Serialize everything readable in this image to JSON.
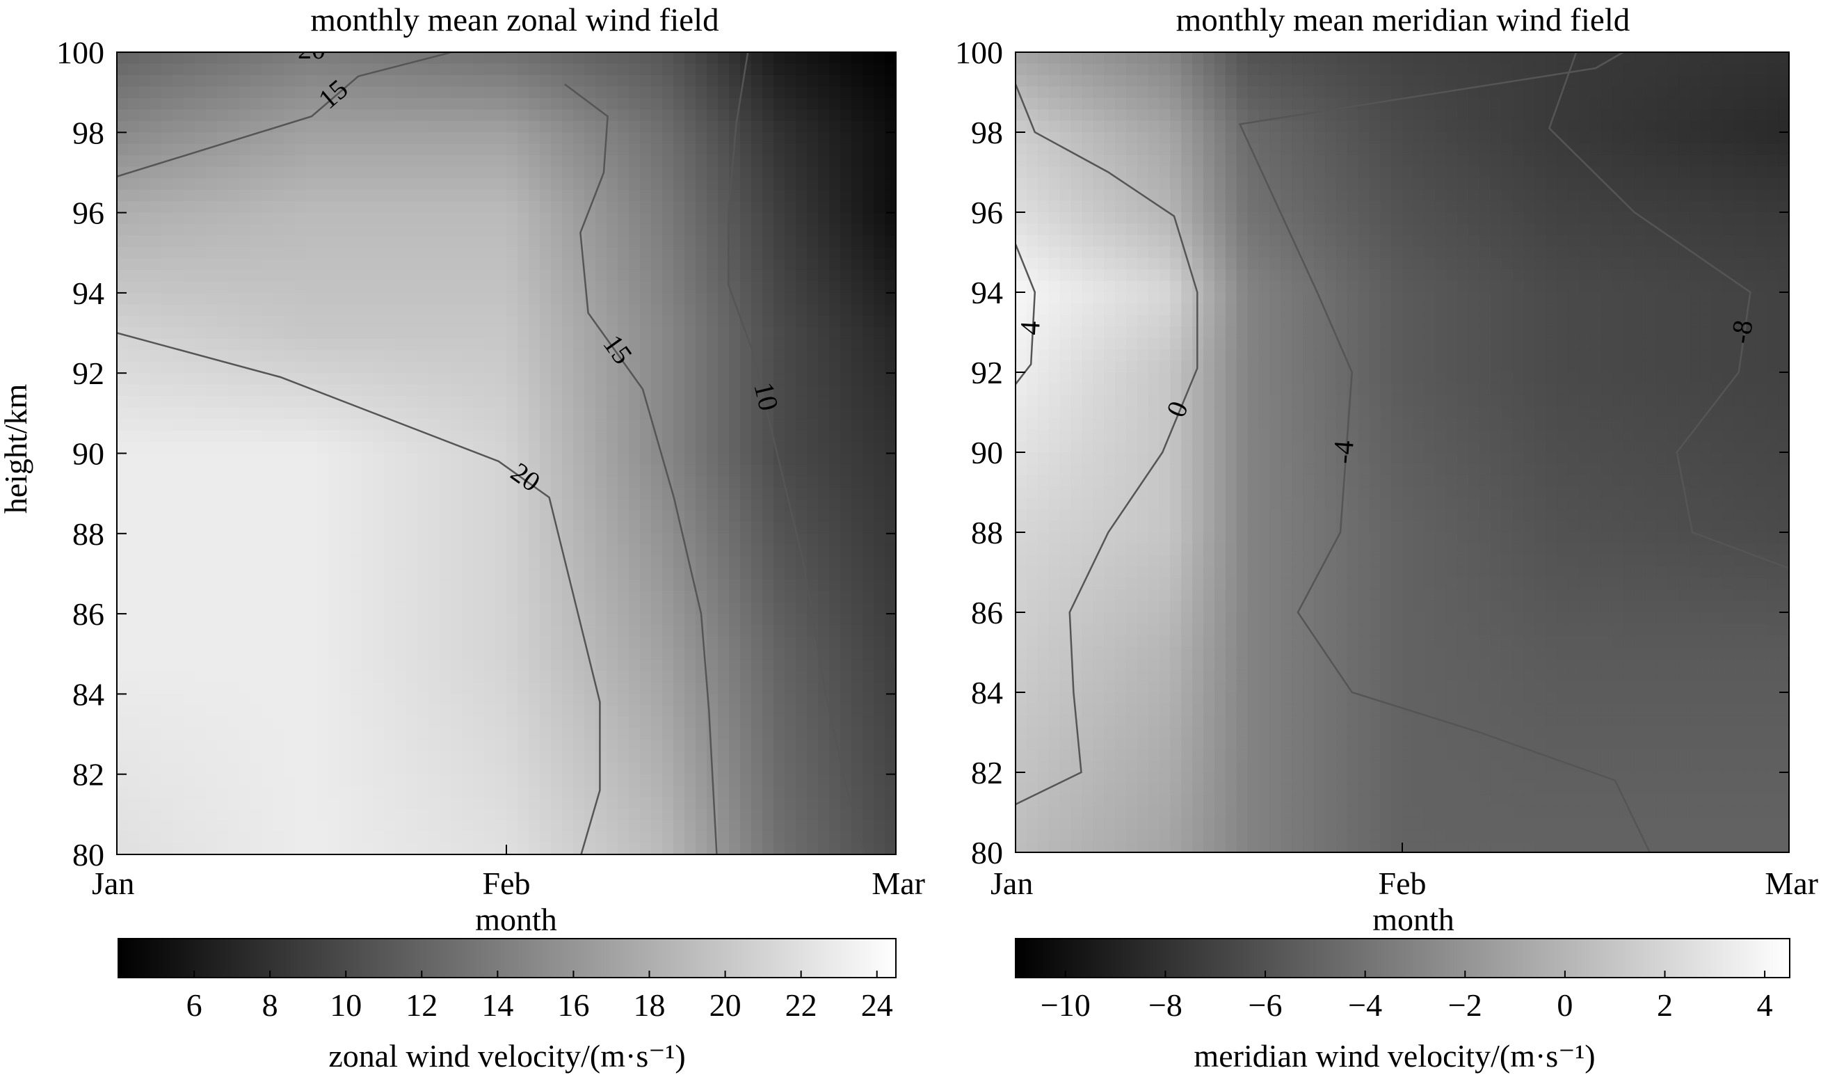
{
  "figure": {
    "ylabel": "height/km",
    "ytick_labels": [
      "80",
      "82",
      "84",
      "86",
      "88",
      "90",
      "92",
      "94",
      "96",
      "98",
      "100"
    ]
  },
  "chart_data": [
    {
      "type": "heatmap",
      "title": "monthly mean zonal wind field",
      "xlabel": "month",
      "ylabel": "height/km",
      "x_categories": [
        "Jan",
        "Feb",
        "Mar"
      ],
      "ylim": [
        80,
        100
      ],
      "colorscale": "gray",
      "colorbar": {
        "label": "zonal wind velocity/(m·s⁻¹)",
        "range": [
          4,
          24.5
        ],
        "ticks": [
          6,
          8,
          10,
          12,
          14,
          16,
          18,
          20,
          22,
          24
        ]
      },
      "contours": [
        {
          "level": 20,
          "label": "20",
          "points": [
            [
              0.0,
              93.0
            ],
            [
              0.42,
              91.9
            ],
            [
              0.98,
              89.8
            ],
            [
              1.11,
              88.9
            ],
            [
              1.24,
              83.8
            ],
            [
              1.24,
              81.6
            ],
            [
              1.18,
              79.6
            ]
          ]
        },
        {
          "level": 20,
          "label": "20",
          "points": [
            [
              0.0,
              100.0
            ],
            [
              1.0,
              100.0
            ]
          ]
        },
        {
          "level": 15,
          "label": "15",
          "points": [
            [
              0.0,
              96.9
            ],
            [
              0.5,
              98.4
            ],
            [
              0.62,
              99.4
            ],
            [
              0.98,
              100.3
            ]
          ]
        },
        {
          "level": 15,
          "label": "15",
          "points": [
            [
              1.15,
              99.2
            ],
            [
              1.26,
              98.4
            ],
            [
              1.25,
              97.0
            ],
            [
              1.19,
              95.5
            ],
            [
              1.21,
              93.5
            ],
            [
              1.35,
              91.6
            ],
            [
              1.43,
              88.9
            ],
            [
              1.5,
              86.0
            ],
            [
              1.52,
              83.6
            ],
            [
              1.54,
              80.0
            ]
          ]
        },
        {
          "level": 10,
          "label": "10",
          "points": [
            [
              1.62,
              100.0
            ],
            [
              1.59,
              98.2
            ],
            [
              1.57,
              96.0
            ],
            [
              1.57,
              94.2
            ],
            [
              1.63,
              92.6
            ],
            [
              1.69,
              90.2
            ],
            [
              1.76,
              87.4
            ],
            [
              1.82,
              84.0
            ],
            [
              1.87,
              81.8
            ],
            [
              1.92,
              80.0
            ]
          ]
        }
      ],
      "field_profiles": {
        "months": [
          0,
          0.5,
          1.0,
          1.4,
          1.7,
          2.0
        ],
        "heights": [
          80,
          85,
          90,
          93,
          96,
          98,
          100
        ],
        "values": [
          [
            22,
            23,
            22,
            19,
            13,
            10
          ],
          [
            23,
            23,
            21,
            17,
            12,
            9
          ],
          [
            23,
            23,
            21,
            15,
            10,
            8
          ],
          [
            21,
            20,
            20,
            15,
            10,
            7
          ],
          [
            18,
            19,
            19,
            14,
            9,
            5
          ],
          [
            15,
            17,
            17,
            13,
            8,
            5
          ],
          [
            12,
            14,
            13,
            11,
            6,
            4
          ]
        ]
      }
    },
    {
      "type": "heatmap",
      "title": "monthly mean meridian wind field",
      "xlabel": "month",
      "ylabel": "height/km",
      "x_categories": [
        "Jan",
        "Feb",
        "Mar"
      ],
      "ylim": [
        80,
        100
      ],
      "colorscale": "gray",
      "colorbar": {
        "label": "meridian wind velocity/(m·s⁻¹)",
        "range": [
          -11,
          4.5
        ],
        "ticks": [
          -10,
          -8,
          -6,
          -4,
          -2,
          0,
          2,
          4
        ]
      },
      "contours": [
        {
          "level": 0,
          "label": "0",
          "points": [
            [
              0.0,
              99.2
            ],
            [
              0.05,
              98.0
            ],
            [
              0.24,
              97.0
            ],
            [
              0.41,
              95.9
            ],
            [
              0.47,
              94.0
            ],
            [
              0.47,
              92.1
            ],
            [
              0.38,
              90.0
            ],
            [
              0.24,
              88.0
            ],
            [
              0.14,
              86.0
            ],
            [
              0.15,
              84.0
            ],
            [
              0.17,
              82.0
            ],
            [
              0.0,
              81.2
            ]
          ]
        },
        {
          "level": 4,
          "label": "4",
          "points": [
            [
              0.0,
              95.2
            ],
            [
              0.05,
              94.0
            ],
            [
              0.04,
              92.2
            ],
            [
              0.0,
              91.7
            ]
          ]
        },
        {
          "level": -4,
          "label": "-4",
          "points": [
            [
              1.75,
              101.0
            ],
            [
              1.5,
              99.6
            ],
            [
              0.58,
              98.2
            ],
            [
              0.78,
              94.0
            ],
            [
              0.87,
              92.0
            ],
            [
              0.84,
              88.0
            ],
            [
              0.73,
              86.0
            ],
            [
              0.87,
              84.0
            ],
            [
              1.2,
              83.0
            ],
            [
              1.55,
              81.8
            ],
            [
              1.64,
              80.0
            ]
          ]
        },
        {
          "level": -8,
          "label": "-8",
          "points": [
            [
              1.45,
              100.0
            ],
            [
              1.38,
              98.1
            ],
            [
              1.6,
              96.0
            ],
            [
              1.9,
              94.0
            ],
            [
              1.87,
              92.0
            ],
            [
              1.71,
              90.0
            ],
            [
              1.75,
              88.0
            ],
            [
              2.0,
              87.1
            ]
          ]
        }
      ],
      "field_profiles": {
        "months": [
          0,
          0.4,
          0.6,
          1.0,
          1.4,
          2.0
        ],
        "heights": [
          80,
          85,
          88,
          92,
          94,
          96,
          98,
          100
        ],
        "values": [
          [
            0.5,
            -1,
            -3,
            -5,
            -5,
            -5
          ],
          [
            1.5,
            0,
            -3,
            -5,
            -5.5,
            -5.5
          ],
          [
            2,
            1,
            -3,
            -5,
            -6,
            -6.5
          ],
          [
            3.5,
            1,
            -3,
            -5.5,
            -6.5,
            -7
          ],
          [
            4,
            2,
            -3,
            -5.5,
            -6.5,
            -7
          ],
          [
            2.5,
            0,
            -4,
            -6,
            -7,
            -7.5
          ],
          [
            1.5,
            -1,
            -4.5,
            -6.5,
            -7.5,
            -8.5
          ],
          [
            -1,
            -3,
            -6,
            -7,
            -7.5,
            -8
          ]
        ]
      }
    }
  ]
}
